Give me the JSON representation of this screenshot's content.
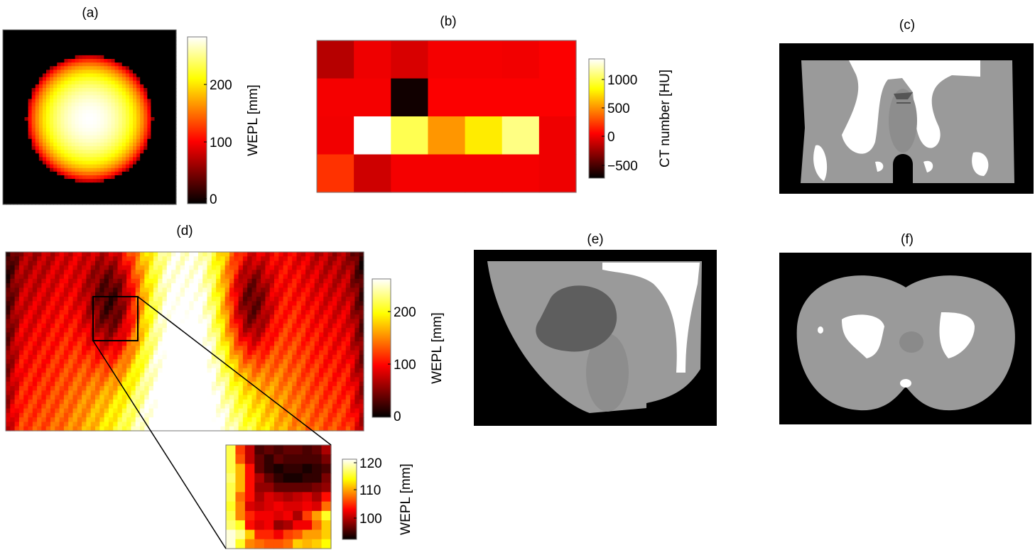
{
  "colors": {
    "bone": "#ffffff",
    "tissue": "#9a9a9a",
    "background": "#000000",
    "organ": "#666666"
  },
  "chart_data": [
    {
      "panel": "(a)",
      "type": "heatmap",
      "colormap": "hot",
      "colorbar": {
        "label": "WEPL [mm]",
        "range": [
          0,
          285
        ],
        "ticks": [
          "0",
          "100",
          "200"
        ]
      }
    },
    {
      "panel": "(b)",
      "type": "heatmap",
      "colormap": "hot",
      "rows": 4,
      "cols": 7,
      "values": [
        [
          -150,
          20,
          -50,
          40,
          40,
          30,
          60
        ],
        [
          40,
          40,
          -650,
          60,
          60,
          60,
          60
        ],
        [
          30,
          1350,
          1000,
          520,
          780,
          1100,
          20
        ],
        [
          220,
          -80,
          40,
          40,
          40,
          40,
          20
        ]
      ],
      "colorbar": {
        "label": "CT number [HU]",
        "range": [
          -700,
          1350
        ],
        "ticks": [
          "1000",
          "500",
          "0",
          "−500"
        ]
      }
    },
    {
      "panel": "(c)",
      "type": "image",
      "colormap": "gray"
    },
    {
      "panel": "(d)",
      "type": "heatmap",
      "colormap": "hot",
      "colorbar": {
        "label": "WEPL [mm]",
        "range": [
          0,
          260
        ],
        "ticks": [
          "0",
          "100",
          "200"
        ]
      }
    },
    {
      "panel": "(d) inset",
      "type": "heatmap",
      "colormap": "hot",
      "rows": 11,
      "cols": 11,
      "values": [
        [
          116,
          106,
          101,
          96,
          97,
          96,
          97,
          97,
          96,
          97,
          100
        ],
        [
          116,
          107,
          101,
          97,
          95,
          97,
          96,
          96,
          96,
          96,
          98
        ],
        [
          116,
          111,
          104,
          97,
          95,
          94,
          95,
          95,
          94,
          95,
          96
        ],
        [
          117,
          111,
          104,
          100,
          97,
          95,
          94,
          94,
          95,
          95,
          98
        ],
        [
          116,
          111,
          104,
          99,
          99,
          97,
          97,
          97,
          97,
          98,
          99
        ],
        [
          116,
          108,
          104,
          100,
          102,
          101,
          100,
          101,
          102,
          100,
          104
        ],
        [
          115,
          109,
          102,
          101,
          102,
          103,
          102,
          102,
          103,
          102,
          108
        ],
        [
          116,
          109,
          105,
          103,
          103,
          102,
          103,
          100,
          106,
          110,
          115
        ],
        [
          117,
          115,
          104,
          102,
          103,
          99,
          100,
          103,
          103,
          108,
          112
        ],
        [
          120,
          118,
          112,
          105,
          105,
          103,
          106,
          107,
          110,
          110,
          112
        ],
        [
          120,
          115,
          109,
          108,
          107,
          107,
          108,
          112,
          111,
          112,
          114
        ]
      ],
      "colorbar": {
        "label": "WEPL [mm]",
        "range": [
          93,
          121
        ],
        "ticks": [
          "100",
          "110",
          "120"
        ]
      }
    },
    {
      "panel": "(e)",
      "type": "image",
      "colormap": "gray"
    },
    {
      "panel": "(f)",
      "type": "image",
      "colormap": "gray"
    }
  ]
}
